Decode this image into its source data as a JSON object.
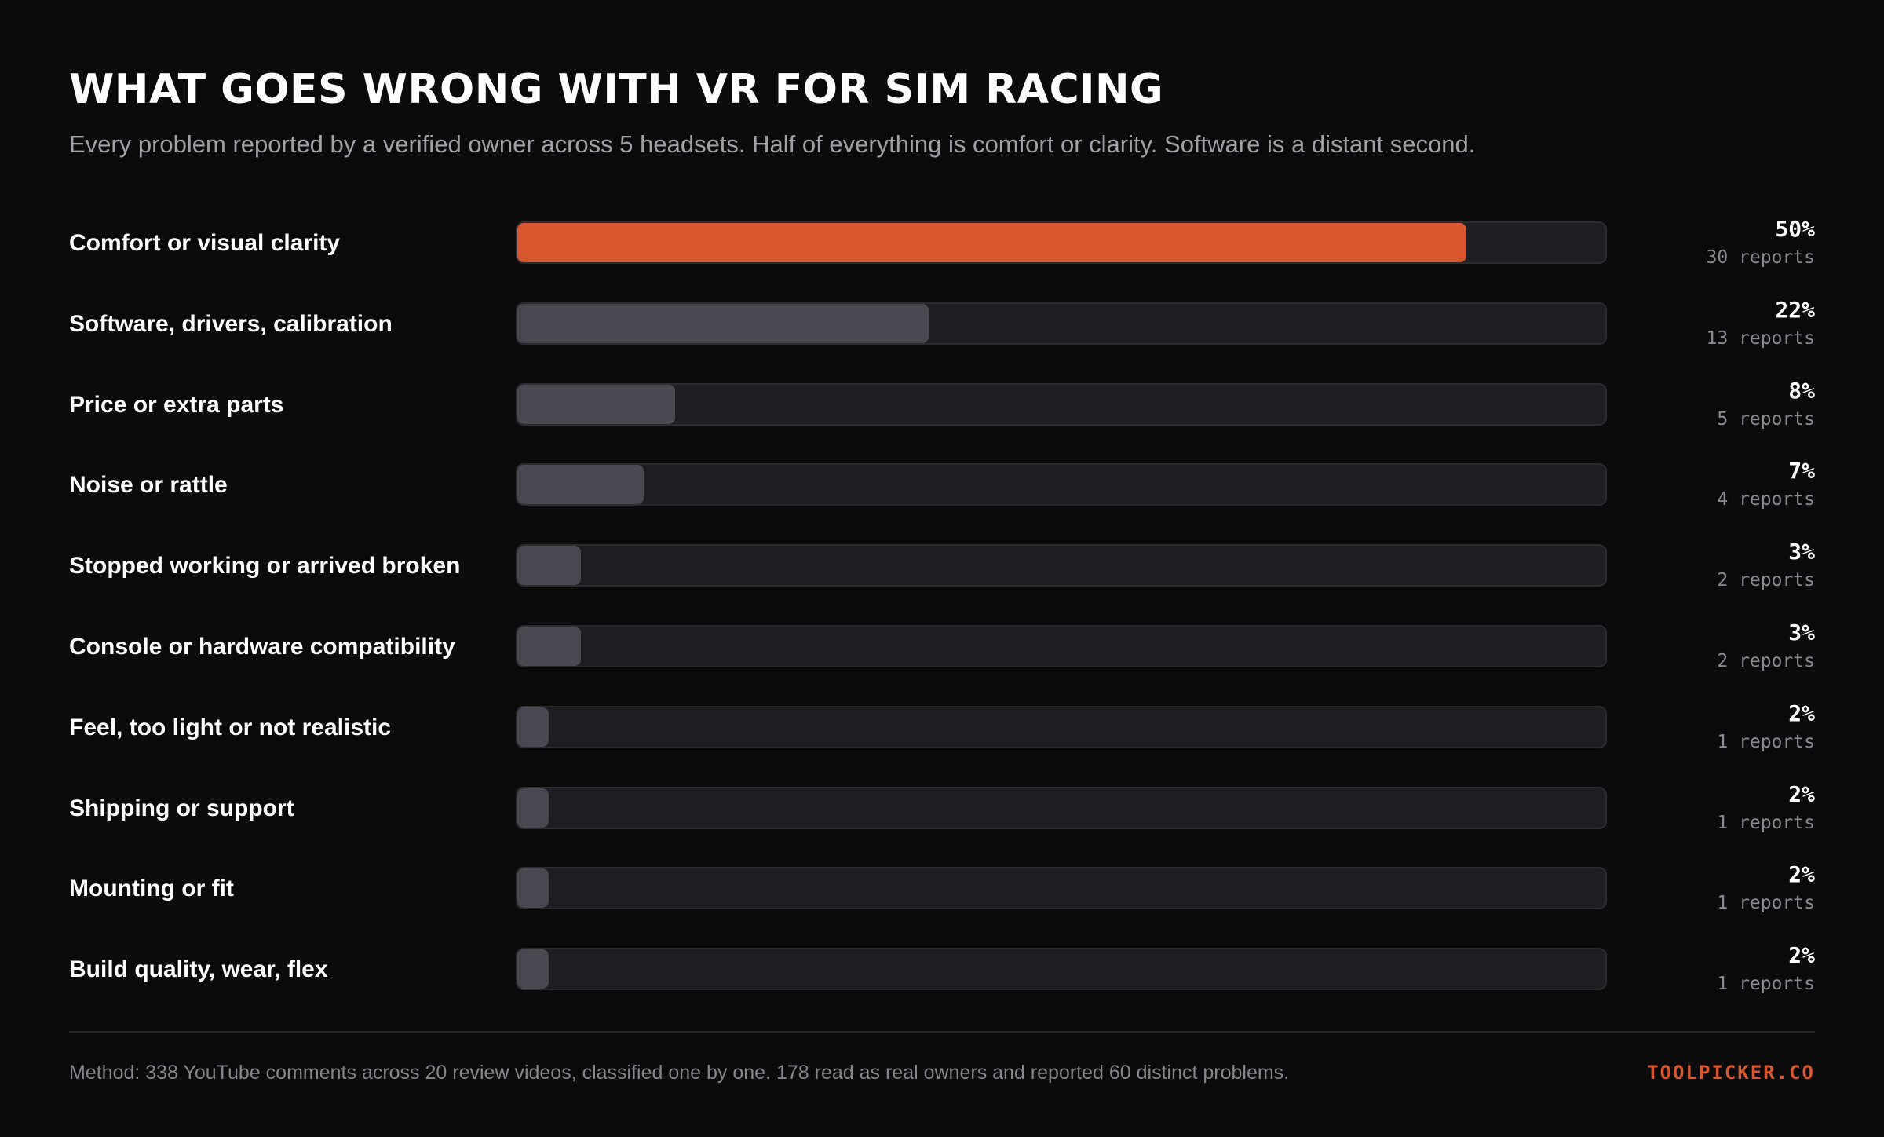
{
  "header": {
    "title": "WHAT GOES WRONG WITH VR FOR SIM RACING",
    "subtitle": "Every problem reported by a verified owner across 5 headsets. Half of everything is comfort or clarity. Software is a distant second."
  },
  "colors": {
    "accent": "#d9572f",
    "bar": "#4a4952",
    "track": "#1e1e22",
    "background": "#0b0b0c"
  },
  "chart_data": {
    "type": "bar",
    "orientation": "horizontal",
    "title": "WHAT GOES WRONG WITH VR FOR SIM RACING",
    "highlight_index": 0,
    "max_value": 30,
    "categories": [
      "Comfort or visual clarity",
      "Software, drivers, calibration",
      "Price or extra parts",
      "Noise or rattle",
      "Stopped working or arrived broken",
      "Console or hardware compatibility",
      "Feel, too light or not realistic",
      "Shipping or support",
      "Mounting or fit",
      "Build quality, wear, flex"
    ],
    "values": [
      30,
      13,
      5,
      4,
      2,
      2,
      1,
      1,
      1,
      1
    ],
    "percent_labels": [
      "50%",
      "22%",
      "8%",
      "7%",
      "3%",
      "3%",
      "2%",
      "2%",
      "2%",
      "2%"
    ],
    "count_labels": [
      "30 reports",
      "13 reports",
      "5 reports",
      "4 reports",
      "2 reports",
      "2 reports",
      "1 reports",
      "1 reports",
      "1 reports",
      "1 reports"
    ]
  },
  "footer": {
    "method": "Method: 338 YouTube comments across 20 review videos, classified one by one. 178 read as real owners and reported 60 distinct problems.",
    "brand": "TOOLPICKER.CO"
  }
}
